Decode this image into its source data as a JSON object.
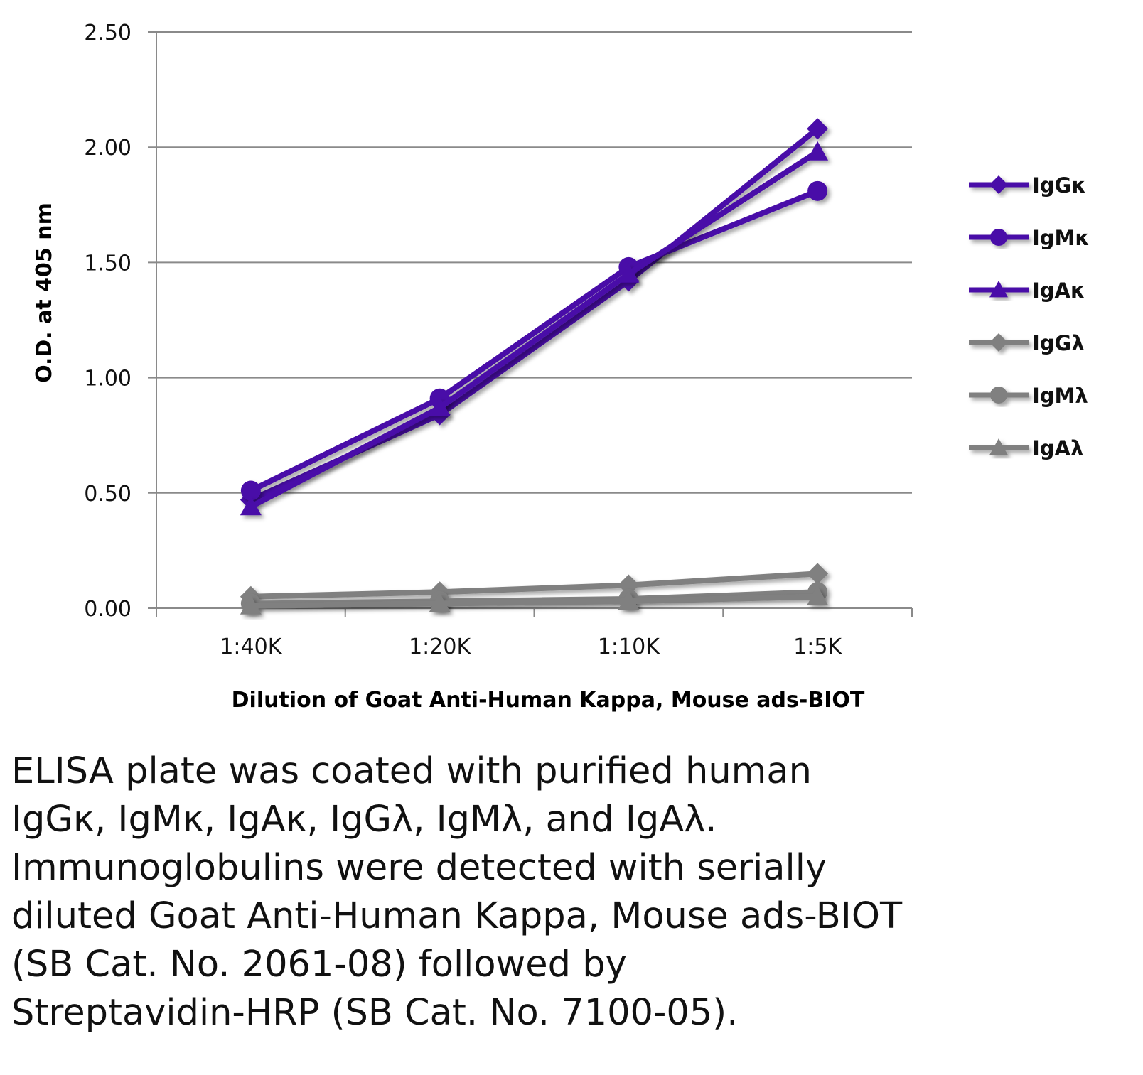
{
  "chart_data": {
    "type": "line",
    "title": "",
    "xlabel": "Dilution of Goat Anti-Human Kappa, Mouse ads-BIOT",
    "ylabel": "O.D. at 405 nm",
    "categories": [
      "1:40K",
      "1:20K",
      "1:10K",
      "1:5K"
    ],
    "ylim": [
      0,
      2.5
    ],
    "yticks": [
      "0.00",
      "0.50",
      "1.00",
      "1.50",
      "2.00",
      "2.50"
    ],
    "grid": true,
    "legend_position": "right",
    "series": [
      {
        "name": "IgGκ",
        "marker": "diamond",
        "color": "#4a0fa8",
        "values": [
          0.47,
          0.84,
          1.42,
          2.08
        ]
      },
      {
        "name": "IgMκ",
        "marker": "circle",
        "color": "#4a0fa8",
        "values": [
          0.51,
          0.91,
          1.48,
          1.81
        ]
      },
      {
        "name": "IgAκ",
        "marker": "triangle",
        "color": "#4a0fa8",
        "values": [
          0.44,
          0.87,
          1.45,
          1.98
        ]
      },
      {
        "name": "IgGλ",
        "marker": "diamond",
        "color": "#808080",
        "values": [
          0.05,
          0.07,
          0.1,
          0.15
        ]
      },
      {
        "name": "IgMλ",
        "marker": "circle",
        "color": "#808080",
        "values": [
          0.02,
          0.03,
          0.04,
          0.07
        ]
      },
      {
        "name": "IgAλ",
        "marker": "triangle",
        "color": "#808080",
        "values": [
          0.01,
          0.02,
          0.03,
          0.05
        ]
      }
    ]
  },
  "caption": "ELISA plate was coated with purified human\nIgGκ, IgMκ, IgAκ, IgGλ, IgMλ, and IgAλ.\nImmunoglobulins were detected with serially\ndiluted Goat Anti-Human Kappa, Mouse ads-BIOT\n(SB Cat. No. 2061-08) followed by\nStreptavidin-HRP (SB Cat. No. 7100-05)."
}
